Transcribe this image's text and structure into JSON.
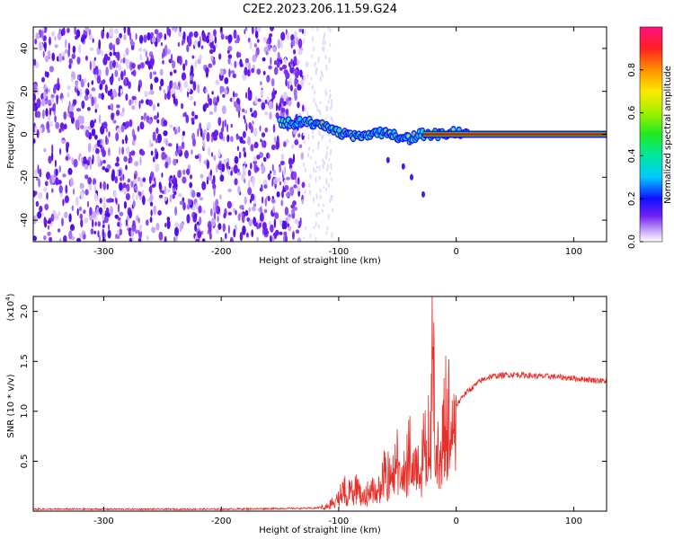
{
  "title": "C2E2.2023.206.11.59.G24",
  "colors": {
    "series_red": "#e8302a",
    "carrier_red": "#e01010",
    "carrier_green": "#20c020",
    "noise_purple": "#6a1cf0",
    "noise_light": "#c8a8f8"
  },
  "chart_data": [
    {
      "type": "heatmap",
      "name": "spectrogram",
      "xlabel": "Height of straight line (km)",
      "ylabel": "Frequency (Hz)",
      "xlim": [
        -360,
        128
      ],
      "ylim": [
        -50,
        50
      ],
      "xticks": [
        -300,
        -200,
        -100,
        0,
        100
      ],
      "yticks": [
        -40,
        -20,
        0,
        20,
        40
      ],
      "noise_region": [
        -360,
        -130
      ],
      "signal_track": [
        {
          "x": -150,
          "f": 6
        },
        {
          "x": -140,
          "f": 5
        },
        {
          "x": -130,
          "f": 6
        },
        {
          "x": -120,
          "f": 5
        },
        {
          "x": -110,
          "f": 3
        },
        {
          "x": -100,
          "f": 1
        },
        {
          "x": -90,
          "f": -1
        },
        {
          "x": -80,
          "f": -1
        },
        {
          "x": -70,
          "f": 0
        },
        {
          "x": -60,
          "f": 1
        },
        {
          "x": -50,
          "f": -1
        },
        {
          "x": -40,
          "f": -2
        },
        {
          "x": -30,
          "f": 0
        },
        {
          "x": -20,
          "f": 0
        },
        {
          "x": -10,
          "f": 0
        },
        {
          "x": 0,
          "f": 1
        },
        {
          "x": 10,
          "f": 0
        }
      ],
      "carrier_line": {
        "x_start": -28,
        "x_end": 128,
        "f": 0
      },
      "colorbar": {
        "label": "Normalized spectral amplitude",
        "ticks": [
          "0.0",
          "0.2",
          "0.4",
          "0.6",
          "0.8"
        ],
        "range": [
          0,
          1
        ]
      }
    },
    {
      "type": "line",
      "name": "snr",
      "xlabel": "Height of straight line (km)",
      "ylabel": "SNR (10 * v/v)",
      "scale_note": "(x10",
      "scale_exp": "4",
      "scale_close": ")",
      "xlim": [
        -360,
        128
      ],
      "ylim": [
        0,
        2.15
      ],
      "xticks": [
        -300,
        -200,
        -100,
        0,
        100
      ],
      "yticks": [
        "0.5",
        "1.0",
        "1.5",
        "2.0"
      ],
      "series": [
        {
          "name": "SNR",
          "x": [
            -360,
            -300,
            -200,
            -120,
            -110,
            -100,
            -95,
            -90,
            -85,
            -80,
            -75,
            -70,
            -65,
            -60,
            -55,
            -50,
            -45,
            -40,
            -35,
            -30,
            -27,
            -25,
            -22,
            -20,
            -18,
            -15,
            -12,
            -10,
            -8,
            -5,
            -2,
            0,
            5,
            10,
            15,
            20,
            25,
            30,
            40,
            50,
            60,
            70,
            80,
            90,
            100,
            110,
            120,
            128
          ],
          "y": [
            0.02,
            0.02,
            0.02,
            0.03,
            0.05,
            0.15,
            0.25,
            0.18,
            0.28,
            0.12,
            0.2,
            0.3,
            0.22,
            0.45,
            0.3,
            0.6,
            0.35,
            0.7,
            0.4,
            0.5,
            0.75,
            0.55,
            1.0,
            2.12,
            0.6,
            0.9,
            1.1,
            0.8,
            1.2,
            0.9,
            1.3,
            1.05,
            1.15,
            1.2,
            1.25,
            1.3,
            1.33,
            1.35,
            1.36,
            1.37,
            1.36,
            1.35,
            1.35,
            1.34,
            1.33,
            1.32,
            1.31,
            1.3
          ]
        }
      ]
    }
  ]
}
